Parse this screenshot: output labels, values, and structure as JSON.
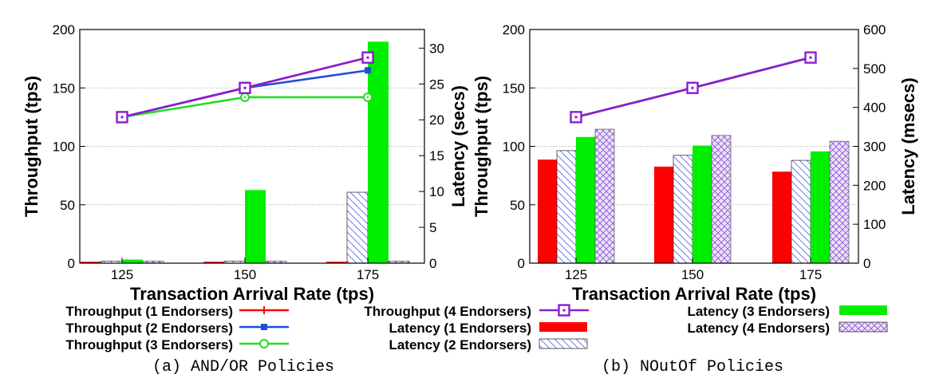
{
  "chart_data": [
    {
      "type": "bar+line",
      "caption": "(a) AND/OR Policies",
      "xlabel": "Transaction Arrival Rate (tps)",
      "ylabel": "Throughput (tps)",
      "y2label": "Latency (secs)",
      "categories": [
        "125",
        "150",
        "175"
      ],
      "ylim": [
        0,
        200
      ],
      "yticks": [
        "0",
        "50",
        "100",
        "150",
        "200"
      ],
      "y2lim": [
        0,
        32.6
      ],
      "y2ticks": [
        "0",
        "5",
        "10",
        "15",
        "20",
        "25",
        "30"
      ],
      "throughput_series": [
        {
          "name": "Throughput (1 Endorsers)",
          "values": [
            125,
            150,
            176
          ],
          "color": "#ff0000"
        },
        {
          "name": "Throughput (2 Endorsers)",
          "values": [
            125,
            150,
            165
          ],
          "color": "#1f4fd8"
        },
        {
          "name": "Throughput (3 Endorsers)",
          "values": [
            125,
            142,
            142
          ],
          "color": "#22dd22"
        },
        {
          "name": "Throughput (4 Endorsers)",
          "values": [
            125,
            150,
            176
          ],
          "color": "#8a1fd0"
        }
      ],
      "latency_series": [
        {
          "name": "Latency (1 Endorsers)",
          "values": [
            0.2,
            0.2,
            0.2
          ]
        },
        {
          "name": "Latency (2 Endorsers)",
          "values": [
            0.3,
            0.3,
            9.9
          ]
        },
        {
          "name": "Latency (3 Endorsers)",
          "values": [
            0.5,
            10.2,
            30.9
          ]
        },
        {
          "name": "Latency (4 Endorsers)",
          "values": [
            0.3,
            0.3,
            0.3
          ]
        }
      ]
    },
    {
      "type": "bar+line",
      "caption": "(b) NOutOf Policies",
      "xlabel": "Transaction Arrival Rate (tps)",
      "ylabel": "Throughput (tps)",
      "y2label": "Latency (msecs)",
      "categories": [
        "125",
        "150",
        "175"
      ],
      "ylim": [
        0,
        200
      ],
      "yticks": [
        "0",
        "50",
        "100",
        "150",
        "200"
      ],
      "y2lim": [
        0,
        600
      ],
      "y2ticks": [
        "0",
        "100",
        "200",
        "300",
        "400",
        "500",
        "600"
      ],
      "throughput_series": [
        {
          "name": "Throughput (1 Endorsers)",
          "values": [
            125,
            150,
            176
          ],
          "color": "#ff0000"
        },
        {
          "name": "Throughput (2 Endorsers)",
          "values": [
            125,
            150,
            176
          ],
          "color": "#1f4fd8"
        },
        {
          "name": "Throughput (3 Endorsers)",
          "values": [
            125,
            150,
            176
          ],
          "color": "#22dd22"
        },
        {
          "name": "Throughput (4 Endorsers)",
          "values": [
            125,
            150,
            176
          ],
          "color": "#8a1fd0"
        }
      ],
      "latency_series": [
        {
          "name": "Latency (1 Endorsers)",
          "values": [
            266,
            248,
            235
          ]
        },
        {
          "name": "Latency (2 Endorsers)",
          "values": [
            289,
            277,
            264
          ]
        },
        {
          "name": "Latency (3 Endorsers)",
          "values": [
            324,
            302,
            287
          ]
        },
        {
          "name": "Latency (4 Endorsers)",
          "values": [
            344,
            328,
            313
          ]
        }
      ]
    }
  ],
  "legend": {
    "placement": "bottom",
    "items": [
      {
        "label": "Throughput (1 Endorsers)",
        "kind": "line",
        "marker": "plus",
        "color": "#ff0000"
      },
      {
        "label": "Throughput (2 Endorsers)",
        "kind": "line",
        "marker": "square",
        "color": "#1f4fd8"
      },
      {
        "label": "Throughput (3 Endorsers)",
        "kind": "line",
        "marker": "circle",
        "color": "#22dd22"
      },
      {
        "label": "Throughput (4 Endorsers)",
        "kind": "line",
        "marker": "box",
        "color": "#8a1fd0"
      },
      {
        "label": "Latency (1 Endorsers)",
        "kind": "bar",
        "fill": "solid",
        "color": "#ff0000"
      },
      {
        "label": "Latency (2 Endorsers)",
        "kind": "bar",
        "fill": "diag",
        "color": "#4a5ee0"
      },
      {
        "label": "Latency (3 Endorsers)",
        "kind": "bar",
        "fill": "solid",
        "color": "#00ee00"
      },
      {
        "label": "Latency (4 Endorsers)",
        "kind": "bar",
        "fill": "cross",
        "color": "#8a4fd8"
      }
    ]
  }
}
